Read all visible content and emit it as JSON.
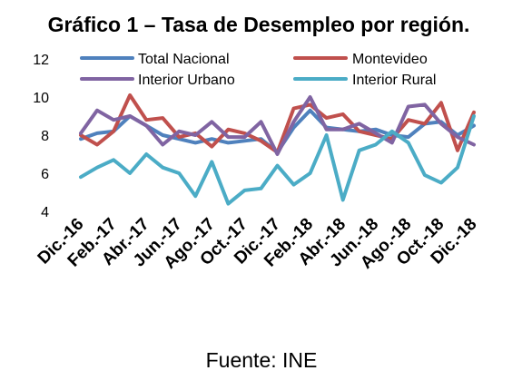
{
  "title": "Gráfico 1 – Tasa de Desempleo por región.",
  "source": "Fuente: INE",
  "chart_data": {
    "type": "line",
    "title": "Gráfico 1 – Tasa de Desempleo por región.",
    "xlabel": "",
    "ylabel": "",
    "ylim": [
      4,
      12
    ],
    "yticks": [
      4,
      6,
      8,
      10,
      12
    ],
    "grid": false,
    "legend": "top",
    "x": [
      "Dic.-16",
      "Ene.-17",
      "Feb.-17",
      "Mar.-17",
      "Abr.-17",
      "May.-17",
      "Jun.-17",
      "Jul.-17",
      "Ago.-17",
      "Sep.-17",
      "Oct.-17",
      "Nov.-17",
      "Dic.-17",
      "Ene.-18",
      "Feb.-18",
      "Mar.-18",
      "Abr.-18",
      "May.-18",
      "Jun.-18",
      "Jul.-18",
      "Ago.-18",
      "Sep.-18",
      "Oct.-18",
      "Nov.-18",
      "Dic.-18"
    ],
    "xtick_labels": [
      "Dic.-16",
      "Feb.-17",
      "Abr.-17",
      "Jun.-17",
      "Ago.-17",
      "Oct.-17",
      "Dic.-17",
      "Feb.-18",
      "Abr.-18",
      "Jun.-18",
      "Ago.-18",
      "Oct.-18",
      "Dic.-18"
    ],
    "series": [
      {
        "name": "Total Nacional",
        "color": "#4f81bd",
        "values": [
          7.8,
          8.1,
          8.2,
          9.0,
          8.5,
          8.0,
          7.8,
          7.6,
          7.8,
          7.6,
          7.7,
          7.8,
          7.1,
          8.4,
          9.3,
          8.4,
          8.3,
          8.2,
          8.3,
          8.0,
          7.9,
          8.6,
          8.7,
          8.0,
          8.5
        ]
      },
      {
        "name": "Montevideo",
        "color": "#c0504d",
        "values": [
          8.0,
          7.5,
          8.2,
          10.1,
          8.8,
          8.9,
          7.9,
          8.1,
          7.4,
          8.3,
          8.1,
          7.7,
          7.1,
          9.4,
          9.6,
          8.9,
          9.1,
          8.2,
          8.0,
          7.8,
          8.8,
          8.6,
          9.7,
          7.2,
          9.2
        ]
      },
      {
        "name": "Interior Urbano",
        "color": "#8064a2",
        "values": [
          8.1,
          9.3,
          8.8,
          9.0,
          8.5,
          7.5,
          8.2,
          8.0,
          8.7,
          7.9,
          7.9,
          8.7,
          7.0,
          8.7,
          10.0,
          8.3,
          8.3,
          8.6,
          8.1,
          7.6,
          9.5,
          9.6,
          8.6,
          7.9,
          7.5
        ]
      },
      {
        "name": "Interior Rural",
        "color": "#4bacc6",
        "values": [
          5.8,
          6.3,
          6.7,
          6.0,
          7.0,
          6.3,
          6.0,
          4.8,
          6.6,
          4.4,
          5.1,
          5.2,
          6.4,
          5.4,
          6.0,
          8.0,
          4.6,
          7.2,
          7.5,
          8.2,
          7.6,
          5.9,
          5.5,
          6.3,
          9.0
        ]
      }
    ]
  }
}
